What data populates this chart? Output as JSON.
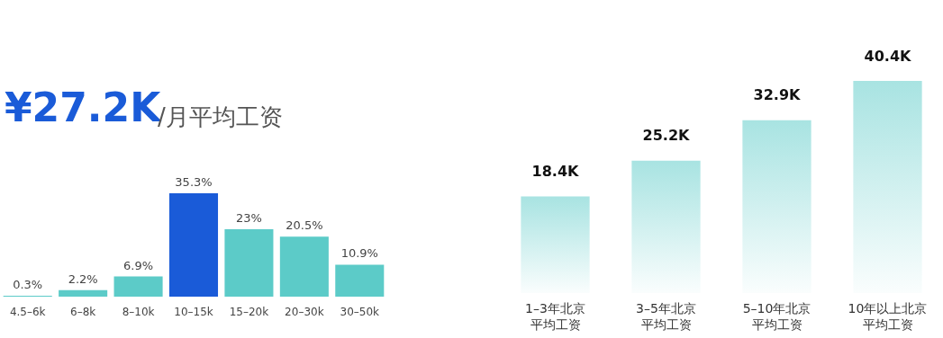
{
  "chart_data": [
    {
      "type": "bar",
      "title": "¥27.2K",
      "subtitle": "/月平均工资",
      "categories": [
        "4.5–6k",
        "6–8k",
        "8–10k",
        "10–15k",
        "15–20k",
        "20–30k",
        "30–50k"
      ],
      "values": [
        0.3,
        2.2,
        6.9,
        35.3,
        23,
        20.5,
        10.9
      ],
      "colors": [
        "#5ccbc8",
        "#5ccbc8",
        "#5ccbc8",
        "#1a5bd8",
        "#5ccbc8",
        "#5ccbc8",
        "#5ccbc8"
      ],
      "value_labels": [
        "0.3%",
        "2.2%",
        "6.9%",
        "35.3%",
        "23%",
        "20.5%",
        "10.9%"
      ]
    },
    {
      "type": "bar",
      "categories": [
        "1–3年北京平均工资",
        "3–5年北京平均工资",
        "5–10年北京平均工资",
        "10年以上北京平均工资"
      ],
      "values": [
        18.4,
        25.2,
        32.9,
        40.4
      ],
      "color": "#5ccbc8",
      "value_labels": [
        "18.4K",
        "25.2K",
        "32.9K",
        "40.4K"
      ]
    }
  ]
}
